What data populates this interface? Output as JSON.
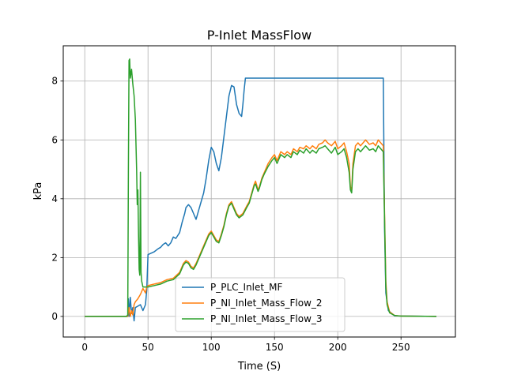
{
  "chart_data": {
    "type": "line",
    "title": "P-Inlet MassFlow",
    "xlabel": "Time (S)",
    "ylabel": "kPa",
    "xlim": [
      -17,
      293
    ],
    "ylim": [
      -0.7,
      9.2
    ],
    "xticks": [
      0,
      50,
      100,
      150,
      200,
      250
    ],
    "yticks": [
      0,
      2,
      4,
      6,
      8
    ],
    "grid": true,
    "legend_position": "bottom-center",
    "series": [
      {
        "name": "P_PLC_Inlet_MF",
        "color": "#1f77b4",
        "points": [
          [
            0,
            0
          ],
          [
            34,
            0
          ],
          [
            34.5,
            0.6
          ],
          [
            35,
            0
          ],
          [
            36,
            0.65
          ],
          [
            37,
            0.1
          ],
          [
            38,
            0.3
          ],
          [
            39,
            -0.15
          ],
          [
            40,
            0.3
          ],
          [
            42,
            0.35
          ],
          [
            44,
            0.4
          ],
          [
            46,
            0.2
          ],
          [
            48,
            0.4
          ],
          [
            49,
            0.9
          ],
          [
            50,
            2.1
          ],
          [
            55,
            2.2
          ],
          [
            58,
            2.3
          ],
          [
            60,
            2.35
          ],
          [
            62,
            2.45
          ],
          [
            64,
            2.5
          ],
          [
            66,
            2.4
          ],
          [
            68,
            2.5
          ],
          [
            70,
            2.7
          ],
          [
            72,
            2.65
          ],
          [
            75,
            2.85
          ],
          [
            77,
            3.2
          ],
          [
            79,
            3.5
          ],
          [
            80,
            3.7
          ],
          [
            82,
            3.8
          ],
          [
            84,
            3.7
          ],
          [
            86,
            3.5
          ],
          [
            88,
            3.3
          ],
          [
            90,
            3.6
          ],
          [
            92,
            3.9
          ],
          [
            94,
            4.2
          ],
          [
            96,
            4.7
          ],
          [
            98,
            5.3
          ],
          [
            100,
            5.75
          ],
          [
            102,
            5.6
          ],
          [
            104,
            5.2
          ],
          [
            106,
            4.95
          ],
          [
            108,
            5.4
          ],
          [
            110,
            6.1
          ],
          [
            112,
            6.8
          ],
          [
            114,
            7.5
          ],
          [
            116,
            7.85
          ],
          [
            118,
            7.8
          ],
          [
            120,
            7.2
          ],
          [
            122,
            6.9
          ],
          [
            124,
            6.8
          ],
          [
            125,
            7.2
          ],
          [
            126,
            7.7
          ],
          [
            127,
            8.1
          ],
          [
            236,
            8.1
          ],
          [
            237,
            3
          ],
          [
            238,
            0.8
          ],
          [
            240,
            0.2
          ],
          [
            245,
            0.02
          ],
          [
            278,
            0
          ]
        ]
      },
      {
        "name": "P_NI_Inlet_Mass_Flow_2",
        "color": "#ff7f0e",
        "points": [
          [
            0,
            0
          ],
          [
            34,
            0
          ],
          [
            35,
            0.3
          ],
          [
            36,
            0
          ],
          [
            37,
            0.2
          ],
          [
            38,
            0.05
          ],
          [
            39,
            0.4
          ],
          [
            40,
            0.5
          ],
          [
            42,
            0.6
          ],
          [
            44,
            0.75
          ],
          [
            46,
            0.95
          ],
          [
            48,
            0.8
          ],
          [
            49,
            1.0
          ],
          [
            50,
            1.05
          ],
          [
            55,
            1.1
          ],
          [
            60,
            1.15
          ],
          [
            65,
            1.25
          ],
          [
            70,
            1.3
          ],
          [
            75,
            1.5
          ],
          [
            78,
            1.8
          ],
          [
            80,
            1.9
          ],
          [
            82,
            1.85
          ],
          [
            84,
            1.7
          ],
          [
            86,
            1.65
          ],
          [
            88,
            1.8
          ],
          [
            90,
            2.0
          ],
          [
            92,
            2.2
          ],
          [
            95,
            2.5
          ],
          [
            98,
            2.8
          ],
          [
            100,
            2.9
          ],
          [
            102,
            2.75
          ],
          [
            104,
            2.6
          ],
          [
            106,
            2.55
          ],
          [
            108,
            2.8
          ],
          [
            110,
            3.1
          ],
          [
            112,
            3.5
          ],
          [
            114,
            3.8
          ],
          [
            116,
            3.9
          ],
          [
            118,
            3.7
          ],
          [
            120,
            3.5
          ],
          [
            122,
            3.4
          ],
          [
            125,
            3.5
          ],
          [
            128,
            3.75
          ],
          [
            130,
            3.9
          ],
          [
            132,
            4.2
          ],
          [
            134,
            4.5
          ],
          [
            135,
            4.6
          ],
          [
            137,
            4.3
          ],
          [
            138,
            4.4
          ],
          [
            140,
            4.7
          ],
          [
            142,
            4.9
          ],
          [
            145,
            5.2
          ],
          [
            148,
            5.4
          ],
          [
            150,
            5.5
          ],
          [
            152,
            5.3
          ],
          [
            155,
            5.6
          ],
          [
            158,
            5.5
          ],
          [
            160,
            5.6
          ],
          [
            163,
            5.5
          ],
          [
            165,
            5.7
          ],
          [
            168,
            5.6
          ],
          [
            170,
            5.75
          ],
          [
            173,
            5.7
          ],
          [
            175,
            5.8
          ],
          [
            178,
            5.7
          ],
          [
            180,
            5.8
          ],
          [
            183,
            5.7
          ],
          [
            185,
            5.85
          ],
          [
            188,
            5.9
          ],
          [
            190,
            6.0
          ],
          [
            192,
            5.9
          ],
          [
            195,
            5.8
          ],
          [
            198,
            5.95
          ],
          [
            200,
            5.7
          ],
          [
            203,
            5.8
          ],
          [
            205,
            5.9
          ],
          [
            207,
            5.6
          ],
          [
            209,
            5.2
          ],
          [
            210,
            4.4
          ],
          [
            211,
            4.3
          ],
          [
            212,
            5.2
          ],
          [
            214,
            5.8
          ],
          [
            216,
            5.9
          ],
          [
            218,
            5.8
          ],
          [
            220,
            5.9
          ],
          [
            222,
            6.0
          ],
          [
            225,
            5.85
          ],
          [
            228,
            5.9
          ],
          [
            230,
            5.8
          ],
          [
            232,
            6.0
          ],
          [
            234,
            5.9
          ],
          [
            236,
            5.8
          ],
          [
            237,
            3.5
          ],
          [
            238,
            1.2
          ],
          [
            239,
            0.5
          ],
          [
            241,
            0.15
          ],
          [
            245,
            0.03
          ],
          [
            250,
            0.01
          ],
          [
            278,
            0
          ]
        ]
      },
      {
        "name": "P_NI_Inlet_Mass_Flow_3",
        "color": "#2ca02c",
        "points": [
          [
            0,
            0
          ],
          [
            33,
            0
          ],
          [
            34,
            0.05
          ],
          [
            34.5,
            5
          ],
          [
            35,
            8.7
          ],
          [
            35.5,
            8.75
          ],
          [
            36,
            8.1
          ],
          [
            37,
            8.4
          ],
          [
            38,
            7.9
          ],
          [
            39,
            7.5
          ],
          [
            40,
            6.7
          ],
          [
            41,
            5.0
          ],
          [
            41.5,
            3.8
          ],
          [
            42,
            4.3
          ],
          [
            42.5,
            2.8
          ],
          [
            43,
            1.6
          ],
          [
            43.5,
            1.4
          ],
          [
            44,
            4.9
          ],
          [
            44.5,
            1.5
          ],
          [
            45,
            1.2
          ],
          [
            46,
            1.0
          ],
          [
            48,
            1.0
          ],
          [
            50,
            1.0
          ],
          [
            55,
            1.05
          ],
          [
            60,
            1.1
          ],
          [
            65,
            1.2
          ],
          [
            70,
            1.25
          ],
          [
            75,
            1.45
          ],
          [
            78,
            1.75
          ],
          [
            80,
            1.85
          ],
          [
            82,
            1.8
          ],
          [
            84,
            1.65
          ],
          [
            86,
            1.6
          ],
          [
            88,
            1.75
          ],
          [
            90,
            1.95
          ],
          [
            92,
            2.15
          ],
          [
            95,
            2.45
          ],
          [
            98,
            2.75
          ],
          [
            100,
            2.85
          ],
          [
            102,
            2.7
          ],
          [
            104,
            2.55
          ],
          [
            106,
            2.5
          ],
          [
            108,
            2.75
          ],
          [
            110,
            3.05
          ],
          [
            112,
            3.45
          ],
          [
            114,
            3.75
          ],
          [
            116,
            3.85
          ],
          [
            118,
            3.65
          ],
          [
            120,
            3.45
          ],
          [
            122,
            3.35
          ],
          [
            125,
            3.45
          ],
          [
            128,
            3.7
          ],
          [
            130,
            3.85
          ],
          [
            132,
            4.15
          ],
          [
            134,
            4.45
          ],
          [
            135,
            4.5
          ],
          [
            137,
            4.25
          ],
          [
            138,
            4.35
          ],
          [
            140,
            4.65
          ],
          [
            142,
            4.85
          ],
          [
            145,
            5.1
          ],
          [
            148,
            5.3
          ],
          [
            150,
            5.4
          ],
          [
            152,
            5.2
          ],
          [
            155,
            5.5
          ],
          [
            158,
            5.4
          ],
          [
            160,
            5.5
          ],
          [
            163,
            5.4
          ],
          [
            165,
            5.6
          ],
          [
            168,
            5.5
          ],
          [
            170,
            5.65
          ],
          [
            173,
            5.55
          ],
          [
            175,
            5.7
          ],
          [
            178,
            5.55
          ],
          [
            180,
            5.65
          ],
          [
            183,
            5.55
          ],
          [
            185,
            5.7
          ],
          [
            188,
            5.75
          ],
          [
            190,
            5.8
          ],
          [
            192,
            5.7
          ],
          [
            195,
            5.55
          ],
          [
            198,
            5.75
          ],
          [
            200,
            5.5
          ],
          [
            203,
            5.6
          ],
          [
            205,
            5.7
          ],
          [
            207,
            5.4
          ],
          [
            209,
            4.9
          ],
          [
            210,
            4.3
          ],
          [
            211,
            4.2
          ],
          [
            212,
            5.0
          ],
          [
            214,
            5.6
          ],
          [
            216,
            5.7
          ],
          [
            218,
            5.6
          ],
          [
            220,
            5.7
          ],
          [
            222,
            5.8
          ],
          [
            225,
            5.65
          ],
          [
            228,
            5.7
          ],
          [
            230,
            5.6
          ],
          [
            232,
            5.8
          ],
          [
            234,
            5.7
          ],
          [
            236,
            5.6
          ],
          [
            237,
            3.3
          ],
          [
            238,
            1.0
          ],
          [
            239,
            0.4
          ],
          [
            241,
            0.12
          ],
          [
            245,
            0.03
          ],
          [
            250,
            0.01
          ],
          [
            278,
            0
          ]
        ]
      }
    ]
  }
}
